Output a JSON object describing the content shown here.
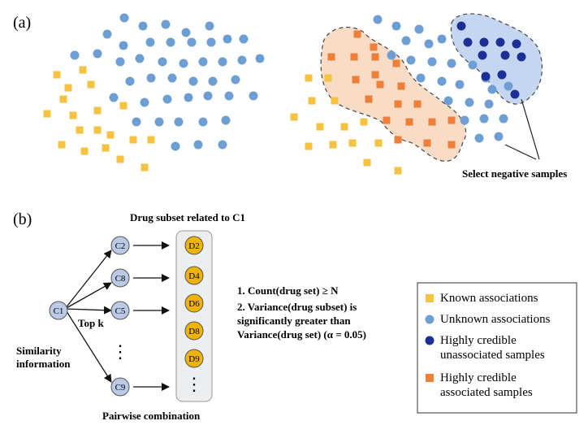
{
  "panel_a": {
    "label": "(a)",
    "select_text": "Select negative samples"
  },
  "panel_b": {
    "label": "(b)",
    "title": "Drug subset related to C1",
    "similarity_label": [
      "Similarity",
      "information"
    ],
    "topk_label": "Top k",
    "pairwise_label": "Pairwise combination",
    "source_node": "C1",
    "target_nodes": [
      "C2",
      "C8",
      "C5",
      "C9"
    ],
    "drug_nodes": [
      "D2",
      "D4",
      "D6",
      "D8",
      "D9"
    ],
    "vertical_ellipsis": "⋮",
    "criteria": [
      "1. Count(drug set) ≥ N",
      "2. Variance(drug subset) is",
      "significantly greater than",
      "Variance(drug set) (α = 0.05)"
    ]
  },
  "legend": {
    "items": [
      {
        "shape": "square",
        "color": "#f5c242",
        "lines": [
          "Known associations"
        ]
      },
      {
        "shape": "circle",
        "color": "#6e9fd4",
        "lines": [
          "Unknown associations"
        ]
      },
      {
        "shape": "circle",
        "color": "#1b2f96",
        "lines": [
          "Highly credible",
          "unassociated samples"
        ]
      },
      {
        "shape": "square",
        "color": "#ee7f3a",
        "lines": [
          "Highly credible",
          "associated samples"
        ]
      }
    ]
  },
  "colors": {
    "known": "#f5c242",
    "unknown": "#6e9fd4",
    "unassociated": "#1b2f96",
    "associated": "#ee7f3a",
    "node_fill": "#b9c9e6",
    "drug_fill": "#f0b400",
    "orange_region": "#f9dcc6",
    "blue_region": "#c5d6f0"
  }
}
